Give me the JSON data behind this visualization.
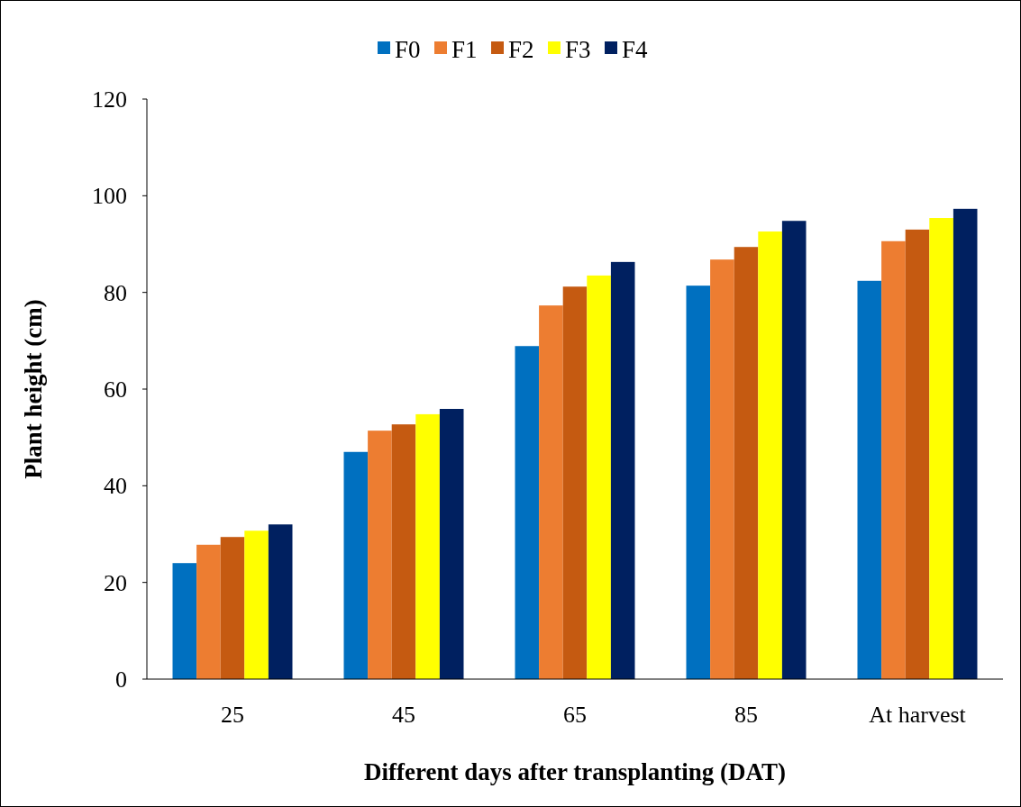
{
  "chart_data": {
    "type": "bar",
    "xlabel": "Different days after transplanting (DAT)",
    "ylabel": "Plant height (cm)",
    "categories": [
      "25",
      "45",
      "65",
      "85",
      "At harvest"
    ],
    "series": [
      {
        "name": "F0",
        "color": "#0070c0",
        "values": [
          24.0,
          47.0,
          68.9,
          81.4,
          82.4
        ]
      },
      {
        "name": "F1",
        "color": "#ed7d31",
        "values": [
          27.8,
          51.4,
          77.3,
          86.8,
          90.6
        ]
      },
      {
        "name": "F2",
        "color": "#c55a11",
        "values": [
          29.4,
          52.7,
          81.2,
          89.4,
          93.0
        ]
      },
      {
        "name": "F3",
        "color": "#ffff00",
        "values": [
          30.7,
          54.8,
          83.5,
          92.6,
          95.4
        ]
      },
      {
        "name": "F4",
        "color": "#002060",
        "values": [
          32.0,
          55.9,
          86.3,
          94.8,
          97.3
        ]
      }
    ],
    "ylim": [
      0,
      120
    ],
    "yticks": [
      0,
      20,
      40,
      60,
      80,
      100,
      120
    ],
    "grid": false,
    "legend": "top"
  }
}
